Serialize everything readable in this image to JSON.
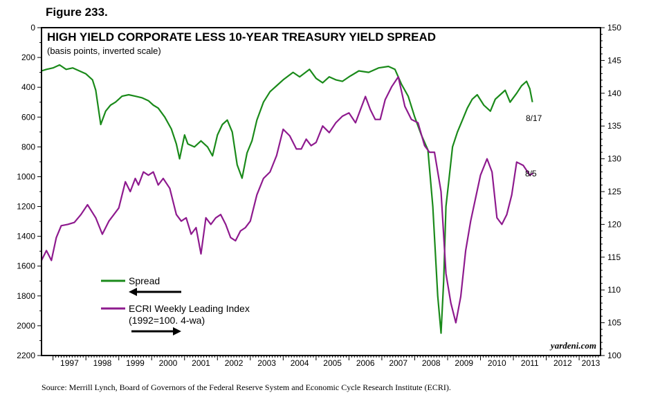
{
  "figure_label": "Figure 233.",
  "source": "Source: Merrill Lynch, Board of Governors of the Federal Reserve System and Economic Cycle Research Institute (ECRI).",
  "watermark": "yardeni.com",
  "colors": {
    "spread": "#1a8a1a",
    "ecri": "#8e1a8e",
    "frame": "#000000"
  },
  "chart_data": {
    "type": "line",
    "title": "HIGH YIELD CORPORATE LESS 10-YEAR TREASURY YIELD SPREAD",
    "subtitle": "(basis points, inverted scale)",
    "x_ticks": [
      "1997",
      "1998",
      "1999",
      "2000",
      "2001",
      "2002",
      "2003",
      "2004",
      "2005",
      "2006",
      "2007",
      "2008",
      "2009",
      "2010",
      "2011",
      "2012",
      "2013"
    ],
    "xlim": [
      1996.65,
      2013.65
    ],
    "left_axis": {
      "ticks": [
        "0",
        "200",
        "400",
        "600",
        "800",
        "1000",
        "1200",
        "1400",
        "1600",
        "1800",
        "2000",
        "2200"
      ],
      "ylim": [
        0,
        2200
      ],
      "inverted": true
    },
    "right_axis": {
      "ticks": [
        "150",
        "145",
        "140",
        "135",
        "130",
        "125",
        "120",
        "115",
        "110",
        "105",
        "100"
      ],
      "ylim": [
        100,
        150
      ],
      "inverted": false
    },
    "legend": [
      {
        "label": "Spread",
        "axis_arrow": "left"
      },
      {
        "label": "ECRI Weekly Leading Index",
        "note": "(1992=100. 4-wa)",
        "axis_arrow": "right"
      }
    ],
    "end_labels": {
      "spread": "8/17",
      "ecri": "8/5"
    },
    "series": [
      {
        "name": "Spread",
        "axis": "left",
        "x": [
          1996.65,
          1996.8,
          1997.0,
          1997.2,
          1997.4,
          1997.6,
          1997.8,
          1998.0,
          1998.2,
          1998.3,
          1998.45,
          1998.6,
          1998.75,
          1998.9,
          1999.0,
          1999.1,
          1999.3,
          1999.5,
          1999.7,
          1999.9,
          2000.05,
          2000.2,
          2000.4,
          2000.6,
          2000.75,
          2000.85,
          2001.0,
          2001.1,
          2001.3,
          2001.5,
          2001.7,
          2001.85,
          2002.0,
          2002.15,
          2002.3,
          2002.45,
          2002.6,
          2002.75,
          2002.9,
          2003.05,
          2003.2,
          2003.4,
          2003.6,
          2003.8,
          2004.0,
          2004.3,
          2004.5,
          2004.8,
          2005.0,
          2005.2,
          2005.4,
          2005.6,
          2005.8,
          2006.0,
          2006.3,
          2006.6,
          2006.9,
          2007.2,
          2007.4,
          2007.6,
          2007.8,
          2008.0,
          2008.2,
          2008.4,
          2008.55,
          2008.7,
          2008.8,
          2008.88,
          2008.95,
          2009.05,
          2009.15,
          2009.3,
          2009.45,
          2009.6,
          2009.75,
          2009.9,
          2010.1,
          2010.3,
          2010.45,
          2010.6,
          2010.75,
          2010.9,
          2011.1,
          2011.25,
          2011.4,
          2011.5,
          2011.58
        ],
        "values": [
          290,
          280,
          270,
          250,
          280,
          270,
          290,
          310,
          350,
          420,
          650,
          560,
          520,
          500,
          480,
          460,
          450,
          460,
          470,
          490,
          520,
          540,
          600,
          680,
          780,
          880,
          720,
          780,
          800,
          760,
          800,
          860,
          720,
          650,
          620,
          700,
          920,
          1010,
          840,
          760,
          620,
          500,
          430,
          390,
          350,
          300,
          330,
          280,
          340,
          370,
          330,
          350,
          360,
          330,
          290,
          300,
          270,
          260,
          280,
          380,
          460,
          600,
          720,
          820,
          1200,
          1800,
          2050,
          1700,
          1200,
          1000,
          800,
          700,
          620,
          540,
          480,
          450,
          520,
          560,
          480,
          450,
          420,
          500,
          440,
          390,
          360,
          410,
          500
        ]
      },
      {
        "name": "ECRI Weekly Leading Index",
        "axis": "right",
        "x": [
          1996.65,
          1996.8,
          1996.95,
          1997.1,
          1997.25,
          1997.45,
          1997.65,
          1997.85,
          1998.05,
          1998.3,
          1998.5,
          1998.7,
          1998.85,
          1999.0,
          1999.2,
          1999.35,
          1999.5,
          1999.6,
          1999.75,
          1999.9,
          2000.05,
          2000.2,
          2000.35,
          2000.55,
          2000.75,
          2000.9,
          2001.05,
          2001.2,
          2001.35,
          2001.5,
          2001.65,
          2001.8,
          2001.95,
          2002.1,
          2002.25,
          2002.4,
          2002.55,
          2002.7,
          2002.85,
          2003.0,
          2003.2,
          2003.4,
          2003.6,
          2003.8,
          2004.0,
          2004.2,
          2004.4,
          2004.55,
          2004.7,
          2004.85,
          2005.0,
          2005.2,
          2005.4,
          2005.6,
          2005.8,
          2006.0,
          2006.2,
          2006.35,
          2006.5,
          2006.65,
          2006.8,
          2006.95,
          2007.1,
          2007.3,
          2007.5,
          2007.7,
          2007.9,
          2008.1,
          2008.3,
          2008.45,
          2008.6,
          2008.8,
          2008.95,
          2009.1,
          2009.25,
          2009.4,
          2009.55,
          2009.7,
          2009.85,
          2010.0,
          2010.2,
          2010.35,
          2010.5,
          2010.65,
          2010.8,
          2010.95,
          2011.1,
          2011.3,
          2011.5,
          2011.6
        ],
        "values": [
          114.5,
          116.0,
          114.5,
          118.0,
          119.8,
          120.0,
          120.3,
          121.5,
          123.0,
          121.0,
          118.5,
          120.5,
          121.5,
          122.5,
          126.5,
          125.0,
          127.0,
          126.0,
          128.0,
          127.5,
          128.0,
          126.0,
          127.0,
          125.5,
          121.5,
          120.5,
          121.0,
          118.5,
          119.5,
          115.5,
          121.0,
          120.0,
          121.0,
          121.5,
          120.0,
          118.0,
          117.5,
          119.0,
          119.5,
          120.5,
          124.5,
          127.0,
          128.0,
          130.5,
          134.5,
          133.5,
          131.5,
          131.5,
          133.0,
          132.0,
          132.5,
          135.0,
          134.0,
          135.5,
          136.5,
          137.0,
          135.5,
          137.5,
          139.5,
          137.5,
          136.0,
          136.0,
          139.0,
          141.0,
          142.5,
          138.0,
          136.0,
          135.5,
          132.0,
          131.0,
          131.0,
          125.0,
          112.5,
          108.0,
          105.0,
          109.0,
          116.0,
          120.5,
          124.0,
          127.5,
          130.0,
          128.0,
          121.0,
          120.0,
          121.5,
          124.5,
          129.5,
          129.0,
          127.5,
          127.8
        ]
      }
    ]
  }
}
